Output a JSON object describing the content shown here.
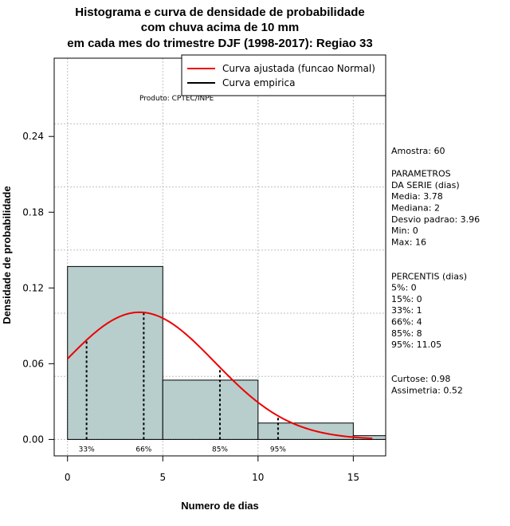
{
  "chart_data": {
    "type": "bar",
    "title_lines": [
      "Histograma e curva de densidade de probabilidade",
      "com chuva acima de 10 mm",
      "em cada mes do trimestre DJF (1998-2017): Regiao 33"
    ],
    "xlabel": "Numero de dias",
    "ylabel": "Densidade de probabilidade",
    "xlim": [
      -0.7,
      16.7
    ],
    "ylim": [
      -0.013,
      0.302
    ],
    "x_ticks": [
      0,
      5,
      10,
      15
    ],
    "y_ticks": [
      0.0,
      0.06,
      0.12,
      0.18,
      0.24
    ],
    "y_tick_labels": [
      "0.00",
      "0.06",
      "0.12",
      "0.18",
      "0.24"
    ],
    "x_grid": [
      0,
      5,
      10,
      15
    ],
    "y_grid": [
      0.0,
      0.05,
      0.1,
      0.15,
      0.2,
      0.25
    ],
    "bins": [
      {
        "start": 0,
        "end": 5,
        "density": 0.137
      },
      {
        "start": 5,
        "end": 10,
        "density": 0.047
      },
      {
        "start": 10,
        "end": 15,
        "density": 0.013
      },
      {
        "start": 15,
        "end": 20,
        "density": 0.003
      }
    ],
    "normal_curve": {
      "mean": 3.78,
      "sd": 3.96,
      "x_from": 0,
      "x_to": 16
    },
    "percentile_markers": [
      {
        "x": 1,
        "label": "33%"
      },
      {
        "x": 4,
        "label": "66%"
      },
      {
        "x": 8,
        "label": "85%"
      },
      {
        "x": 11.05,
        "label": "95%"
      }
    ],
    "legend": {
      "position": "top-right",
      "entries": [
        {
          "label": "Curva ajustada (funcao Normal)",
          "color": "#ee0000"
        },
        {
          "label": "Curva empirica",
          "color": "#000000"
        }
      ]
    },
    "credit": "Produto: CPTEC/INPE",
    "stats_lines": [
      "Amostra: 60",
      "",
      " PARAMETROS",
      "DA SERIE (dias)",
      "  Media: 3.78",
      "  Mediana: 2",
      "  Desvio padrao: 3.96",
      "  Min: 0",
      "  Max: 16",
      "",
      "",
      "PERCENTIS (dias)",
      "  5%: 0",
      "  15%: 0",
      "  33%: 1",
      "  66%: 4",
      "  85%: 8",
      "  95%: 11.05",
      "",
      "",
      "   Curtose: 0.98",
      "Assimetria: 0.52"
    ],
    "colors": {
      "bar_fill": "#b7cecd",
      "bar_stroke": "#000000",
      "curve": "#ee0000",
      "grid": "#bfbfbf"
    }
  }
}
